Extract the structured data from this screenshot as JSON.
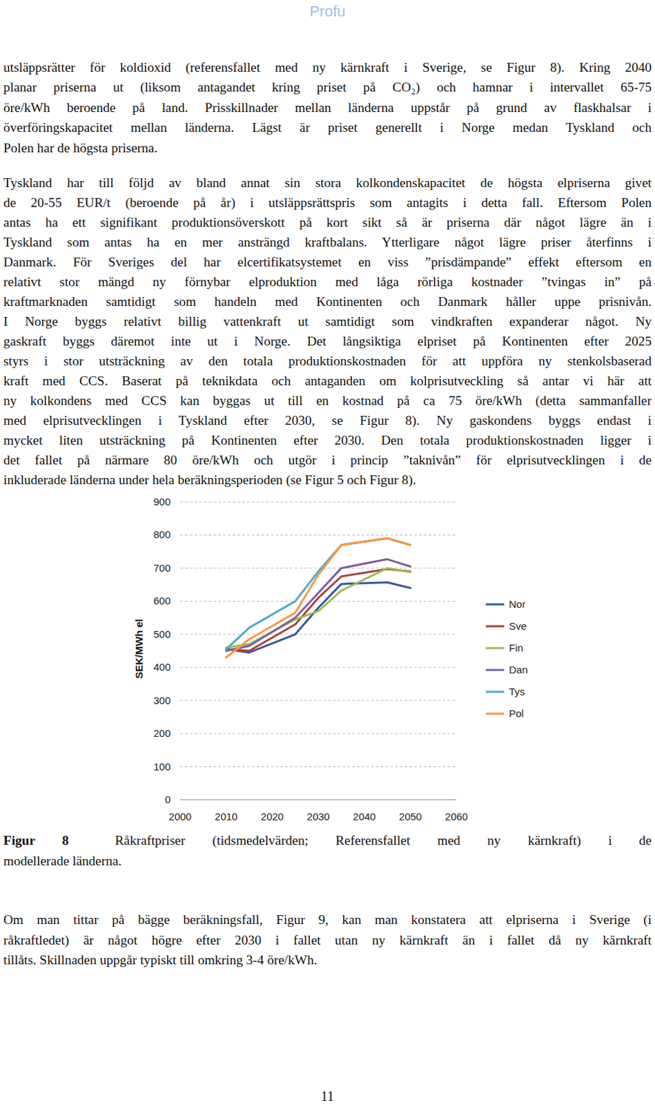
{
  "header": "Profu",
  "paragraphs_top": [
    [
      "utsläppsrätter för koldioxid (referensfallet med ny kärnkraft i Sverige, se Figur 8). Kring 2040",
      "planar priserna ut (liksom antagandet kring priset på CO₂) och hamnar i intervallet 65-75",
      "öre/kWh beroende på land. Prisskillnader mellan länderna uppstår på grund av flaskhalsar i",
      "överföringskapacitet mellan länderna. Lägst är priset generellt i Norge medan Tyskland och",
      "Polen har de högsta priserna."
    ],
    [
      "Tyskland har till följd av bland annat sin stora kolkondenskapacitet de högsta elpriserna givet",
      "de 20-55 EUR/t (beroende på år) i utsläppsrättspris som antagits i detta fall. Eftersom Polen",
      "antas ha ett signifikant produktionsöverskott på kort sikt så är priserna där något lägre än i",
      "Tyskland som antas ha en mer ansträngd kraftbalans. Ytterligare något lägre priser återfinns i",
      "Danmark. För Sveriges del har elcertifikatsystemet en viss ”prisdämpande” effekt eftersom en",
      "relativt stor mängd ny förnybar elproduktion med låga rörliga kostnader ”tvingas in” på",
      "kraftmarknaden samtidigt som handeln med Kontinenten och Danmark håller uppe prisnivån.",
      "I Norge byggs relativt billig vattenkraft ut samtidigt som vindkraften expanderar något. Ny",
      "gaskraft byggs däremot inte ut i Norge. Det långsiktiga elpriset på Kontinenten efter 2025",
      "styrs i stor utsträckning av den totala produktionskostnaden för att uppföra ny stenkolsbaserad",
      "kraft med CCS. Baserat på teknikdata och antaganden om kolprisutveckling så antar vi här att",
      "ny kolkondens med CCS kan byggas ut till en kostnad på ca 75 öre/kWh (detta sammanfaller",
      "med elprisutvecklingen i Tyskland efter 2030, se Figur 8). Ny gaskondens byggs endast i",
      "mycket liten utsträckning på Kontinenten efter 2030. Den totala produktionskostnaden ligger i",
      "det fallet på närmare 80 öre/kWh och utgör i princip ”taknivån” för elprisutvecklingen i de",
      "inkluderade länderna under hela beräkningsperioden (se Figur 5 och Figur 8)."
    ]
  ],
  "chart_data": {
    "type": "line",
    "y_label": "SEK/MWh el",
    "x": [
      2010,
      2015,
      2025,
      2030,
      2035,
      2045,
      2050
    ],
    "series": [
      {
        "name": "Nor",
        "color": "#34589a",
        "values": [
          455,
          445,
          500,
          580,
          652,
          657,
          640
        ]
      },
      {
        "name": "Sve",
        "color": "#a8403d",
        "values": [
          455,
          450,
          530,
          610,
          675,
          697,
          690
        ]
      },
      {
        "name": "Fin",
        "color": "#9bbb59",
        "values": [
          460,
          470,
          545,
          570,
          632,
          700,
          688
        ]
      },
      {
        "name": "Dan",
        "color": "#7b5f9f",
        "values": [
          450,
          465,
          550,
          625,
          700,
          727,
          705
        ]
      },
      {
        "name": "Tys",
        "color": "#4bacc6",
        "values": [
          455,
          520,
          600,
          690,
          770,
          790,
          770
        ]
      },
      {
        "name": "Pol",
        "color": "#f79646",
        "values": [
          430,
          485,
          565,
          680,
          770,
          790,
          770
        ]
      }
    ],
    "xlim": [
      2000,
      2060
    ],
    "xticks": [
      2000,
      2010,
      2020,
      2030,
      2040,
      2050,
      2060
    ],
    "ylim": [
      0,
      900
    ],
    "yticks": [
      0,
      100,
      200,
      300,
      400,
      500,
      600,
      700,
      800,
      900
    ],
    "grid": true,
    "legend": "right"
  },
  "caption": {
    "label": "Figur 8",
    "lines": [
      "Råkraftpriser (tidsmedelvärden; Referensfallet med ny kärnkraft) i de",
      "modellerade länderna."
    ]
  },
  "paragraphs_bottom": [
    [
      "Om man tittar på bägge beräkningsfall, Figur 9, kan man konstatera att elpriserna i Sverige (i",
      "råkraftledet) är något högre efter 2030 i fallet utan ny kärnkraft än i fallet då ny kärnkraft",
      "tillåts. Skillnaden uppgår typiskt till omkring 3-4 öre/kWh."
    ]
  ],
  "page_number": "11"
}
